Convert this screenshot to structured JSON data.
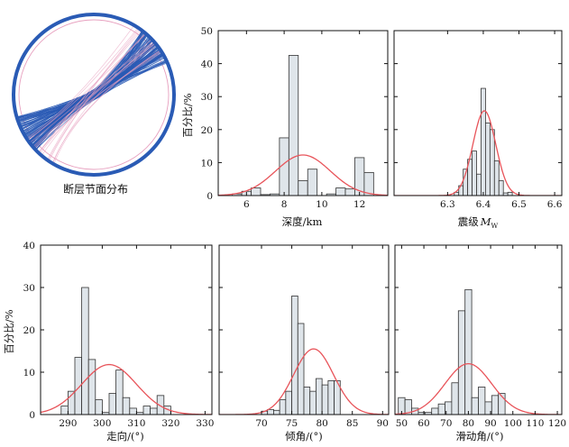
{
  "colors": {
    "bar_fill": "#dfe5ea",
    "bar_stroke": "#333333",
    "fit_curve": "#e8545a",
    "beachball": "#2a5bb5",
    "beachball_minor": "#e7a0bf"
  },
  "beachball": {
    "caption": "断层节面分布"
  },
  "chart_data": [
    {
      "id": "depth",
      "type": "bar",
      "xlabel": "深度/km",
      "ylabel": "百分比/%",
      "xlim": [
        4.5,
        13.5
      ],
      "ylim": [
        0,
        50
      ],
      "xticks": [
        6,
        8,
        10,
        12
      ],
      "yticks": [
        0,
        10,
        20,
        30,
        40,
        50
      ],
      "bin_width": 0.5,
      "bins": [
        {
          "x": 5.5,
          "value": 0.5
        },
        {
          "x": 6.0,
          "value": 1.3
        },
        {
          "x": 6.5,
          "value": 2.3
        },
        {
          "x": 7.0,
          "value": 0.3
        },
        {
          "x": 7.5,
          "value": 0.5
        },
        {
          "x": 8.0,
          "value": 17.5
        },
        {
          "x": 8.5,
          "value": 42.5
        },
        {
          "x": 9.0,
          "value": 4.5
        },
        {
          "x": 9.5,
          "value": 8.0
        },
        {
          "x": 10.5,
          "value": 0.5
        },
        {
          "x": 11.0,
          "value": 2.3
        },
        {
          "x": 11.5,
          "value": 2.0
        },
        {
          "x": 12.0,
          "value": 11.5
        },
        {
          "x": 12.5,
          "value": 7.0
        }
      ],
      "fit": {
        "mean": 9.0,
        "std": 1.45,
        "peak": 12.3
      }
    },
    {
      "id": "magnitude",
      "type": "bar",
      "xlabel": "震级",
      "xlabel_var": "M",
      "xlabel_sub": "W",
      "xlim": [
        6.15,
        6.62
      ],
      "ylim": [
        0,
        50
      ],
      "xticks": [
        6.3,
        6.4,
        6.5,
        6.6
      ],
      "yticks": [
        0,
        10,
        20,
        30,
        40,
        50
      ],
      "bin_width": 0.0125,
      "bins": [
        {
          "x": 6.325,
          "value": 1.0
        },
        {
          "x": 6.3375,
          "value": 3.0
        },
        {
          "x": 6.35,
          "value": 8.0
        },
        {
          "x": 6.3625,
          "value": 11.0
        },
        {
          "x": 6.375,
          "value": 13.5
        },
        {
          "x": 6.3875,
          "value": 6.5
        },
        {
          "x": 6.4,
          "value": 32.5
        },
        {
          "x": 6.4125,
          "value": 22.0
        },
        {
          "x": 6.425,
          "value": 20.0
        },
        {
          "x": 6.4375,
          "value": 10.5
        },
        {
          "x": 6.45,
          "value": 4.5
        },
        {
          "x": 6.4625,
          "value": 0.8
        },
        {
          "x": 6.475,
          "value": 1.0
        }
      ],
      "fit": {
        "mean": 6.403,
        "std": 0.032,
        "peak": 25.7
      }
    },
    {
      "id": "strike",
      "type": "bar",
      "xlabel": "走向/(°)",
      "ylabel": "百分比/%",
      "xlim": [
        282,
        332
      ],
      "ylim": [
        0,
        40
      ],
      "xticks": [
        290,
        300,
        310,
        320,
        330
      ],
      "yticks": [
        0,
        10,
        20,
        30,
        40
      ],
      "bin_width": 2,
      "bins": [
        {
          "x": 289,
          "value": 2.0
        },
        {
          "x": 291,
          "value": 5.5
        },
        {
          "x": 293,
          "value": 13.5
        },
        {
          "x": 295,
          "value": 30.0
        },
        {
          "x": 297,
          "value": 13.0
        },
        {
          "x": 299,
          "value": 3.5
        },
        {
          "x": 301,
          "value": 0.5
        },
        {
          "x": 303,
          "value": 5.0
        },
        {
          "x": 305,
          "value": 10.5
        },
        {
          "x": 307,
          "value": 4.0
        },
        {
          "x": 309,
          "value": 1.5
        },
        {
          "x": 311,
          "value": 0.5
        },
        {
          "x": 313,
          "value": 2.0
        },
        {
          "x": 315,
          "value": 1.5
        },
        {
          "x": 317,
          "value": 4.5
        },
        {
          "x": 319,
          "value": 2.0
        }
      ],
      "fit": {
        "mean": 302,
        "std": 8.0,
        "peak": 11.8
      }
    },
    {
      "id": "dip",
      "type": "bar",
      "xlabel": "倾角/(°)",
      "xlim": [
        63,
        91
      ],
      "ylim": [
        0,
        40
      ],
      "xticks": [
        70,
        75,
        80,
        85,
        90
      ],
      "yticks": [
        0,
        10,
        20,
        30,
        40
      ],
      "bin_width": 1,
      "bins": [
        {
          "x": 70.5,
          "value": 0.8
        },
        {
          "x": 71.5,
          "value": 1.2
        },
        {
          "x": 72.5,
          "value": 1.0
        },
        {
          "x": 73.5,
          "value": 3.5
        },
        {
          "x": 74.5,
          "value": 5.5
        },
        {
          "x": 75.5,
          "value": 28.0
        },
        {
          "x": 76.5,
          "value": 21.5
        },
        {
          "x": 77.5,
          "value": 6.5
        },
        {
          "x": 78.5,
          "value": 5.5
        },
        {
          "x": 79.5,
          "value": 8.5
        },
        {
          "x": 80.5,
          "value": 7.0
        },
        {
          "x": 81.5,
          "value": 8.0
        },
        {
          "x": 82.5,
          "value": 8.0
        }
      ],
      "fit": {
        "mean": 78.6,
        "std": 3.3,
        "peak": 15.5
      }
    },
    {
      "id": "rake",
      "type": "bar",
      "xlabel": "滑动角/(°)",
      "xlim": [
        47,
        122
      ],
      "ylim": [
        0,
        40
      ],
      "xticks": [
        50,
        60,
        70,
        80,
        90,
        100,
        110,
        120
      ],
      "yticks": [
        0,
        10,
        20,
        30,
        40
      ],
      "bin_width": 3,
      "bins": [
        {
          "x": 50,
          "value": 4.0
        },
        {
          "x": 53,
          "value": 3.5
        },
        {
          "x": 56,
          "value": 1.5
        },
        {
          "x": 59,
          "value": 0.5
        },
        {
          "x": 62,
          "value": 0.5
        },
        {
          "x": 65,
          "value": 1.5
        },
        {
          "x": 68,
          "value": 2.5
        },
        {
          "x": 71,
          "value": 3.0
        },
        {
          "x": 74,
          "value": 7.5
        },
        {
          "x": 77,
          "value": 24.5
        },
        {
          "x": 80,
          "value": 29.5
        },
        {
          "x": 83,
          "value": 4.0
        },
        {
          "x": 86,
          "value": 6.5
        },
        {
          "x": 89,
          "value": 3.0
        },
        {
          "x": 92,
          "value": 4.5
        },
        {
          "x": 95,
          "value": 5.0
        }
      ],
      "fit": {
        "mean": 80,
        "std": 10.5,
        "peak": 12.0
      }
    }
  ]
}
